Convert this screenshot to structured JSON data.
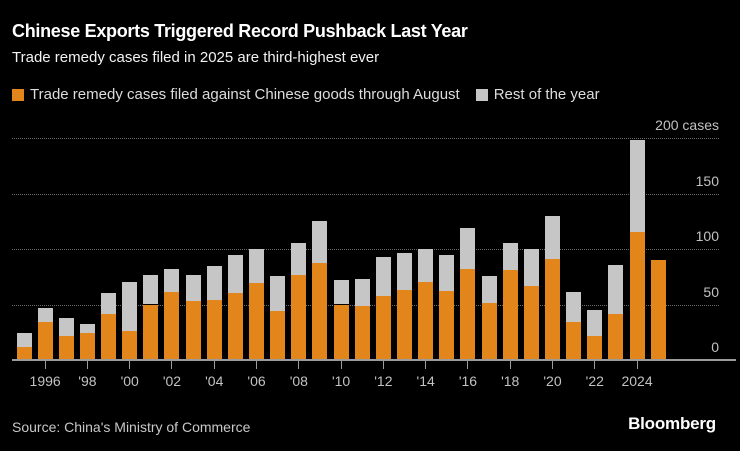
{
  "header": {
    "title": "Chinese Exports Triggered Record Pushback Last Year",
    "subtitle": "Trade remedy cases filed in 2025 are third-highest ever"
  },
  "legend": {
    "items": [
      {
        "label": "Trade remedy cases filed against Chinese goods through August",
        "color": "#E2861C"
      },
      {
        "label": "Rest of the year",
        "color": "#C6C6C6"
      }
    ]
  },
  "chart_data": {
    "type": "bar",
    "stacked": true,
    "title": "Chinese Exports Triggered Record Pushback Last Year",
    "subtitle": "Trade remedy cases filed in 2025 are third-highest ever",
    "x": [
      1995,
      1996,
      1997,
      1998,
      1999,
      2000,
      2001,
      2002,
      2003,
      2004,
      2005,
      2006,
      2007,
      2008,
      2009,
      2010,
      2011,
      2012,
      2013,
      2014,
      2015,
      2016,
      2017,
      2018,
      2019,
      2020,
      2021,
      2022,
      2023,
      2024,
      2025
    ],
    "series": [
      {
        "name": "Trade remedy cases filed against Chinese goods through August",
        "color": "#E2861C",
        "values": [
          12,
          34,
          22,
          24,
          41,
          26,
          50,
          61,
          53,
          54,
          60,
          69,
          44,
          77,
          87,
          50,
          49,
          58,
          63,
          70,
          62,
          82,
          51,
          81,
          67,
          91,
          34,
          22,
          41,
          115,
          90
        ]
      },
      {
        "name": "Rest of the year",
        "color": "#C6C6C6",
        "values": [
          12,
          13,
          16,
          8,
          19,
          44,
          27,
          21,
          24,
          31,
          35,
          31,
          32,
          28,
          38,
          22,
          24,
          35,
          33,
          30,
          33,
          37,
          25,
          24,
          33,
          39,
          27,
          23,
          45,
          83,
          0
        ]
      }
    ],
    "ylim": [
      0,
      200
    ],
    "yticks": [
      {
        "value": 0,
        "label": "0"
      },
      {
        "value": 50,
        "label": "50"
      },
      {
        "value": 100,
        "label": "100"
      },
      {
        "value": 150,
        "label": "150"
      },
      {
        "value": 200,
        "label": "200 cases"
      }
    ],
    "xticks": [
      {
        "value": 1996,
        "label": "1996"
      },
      {
        "value": 1998,
        "label": "'98"
      },
      {
        "value": 2000,
        "label": "'00"
      },
      {
        "value": 2002,
        "label": "'02"
      },
      {
        "value": 2004,
        "label": "'04"
      },
      {
        "value": 2006,
        "label": "'06"
      },
      {
        "value": 2008,
        "label": "'08"
      },
      {
        "value": 2010,
        "label": "'10"
      },
      {
        "value": 2012,
        "label": "'12"
      },
      {
        "value": 2014,
        "label": "'14"
      },
      {
        "value": 2016,
        "label": "'16"
      },
      {
        "value": 2018,
        "label": "'18"
      },
      {
        "value": 2020,
        "label": "'20"
      },
      {
        "value": 2022,
        "label": "'22"
      },
      {
        "value": 2024,
        "label": "2024"
      }
    ],
    "grid": "horizontal-dotted",
    "legend_position": "top"
  },
  "footer": {
    "source": "Source: China's Ministry of Commerce",
    "brand": "Bloomberg"
  },
  "colors": {
    "background": "#000000",
    "title": "#FFFFFF",
    "subtitle": "#F2F2F2",
    "legend_text": "#DCDCDC",
    "axis_text": "#C2C2C2",
    "gridline": "#6A6A6A",
    "axis_line": "#9B9B9B",
    "bar_august": "#E2861C",
    "bar_rest": "#C6C6C6",
    "source_text": "#C8C8C8",
    "brand_text": "#FFFFFF"
  }
}
